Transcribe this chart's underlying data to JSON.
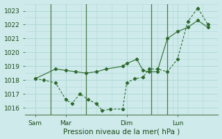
{
  "title": "",
  "xlabel": "Pression niveau de la mer( hPa )",
  "ylabel": "",
  "background_color": "#ceeaea",
  "grid_color": "#b0d8d8",
  "line_color": "#2d6b2d",
  "vline_color": "#4a7a4a",
  "xlim": [
    0,
    9.5
  ],
  "ylim": [
    1015.5,
    1023.5
  ],
  "yticks": [
    1016,
    1017,
    1018,
    1019,
    1020,
    1021,
    1022,
    1023
  ],
  "xtick_positions": [
    0.5,
    2.0,
    5.0,
    7.5
  ],
  "xtick_labels": [
    "Sam",
    "Mar",
    "Dim",
    "Lun"
  ],
  "vlines": [
    1.25,
    3.0,
    6.2,
    7.0
  ],
  "line1_x": [
    0.5,
    0.9,
    1.5,
    2.0,
    2.3,
    2.7,
    3.1,
    3.5,
    3.8,
    4.2,
    4.8,
    5.0,
    5.4,
    5.8,
    6.1,
    6.5,
    7.0,
    7.5,
    8.0,
    8.5,
    9.0
  ],
  "line1_y": [
    1018.1,
    1018.0,
    1017.8,
    1016.6,
    1016.3,
    1017.0,
    1016.6,
    1016.3,
    1015.8,
    1015.9,
    1015.9,
    1017.8,
    1018.1,
    1018.2,
    1018.8,
    1018.8,
    1018.6,
    1019.5,
    1022.2,
    1023.2,
    1022.0
  ],
  "line2_x": [
    0.5,
    1.5,
    2.0,
    2.5,
    3.0,
    3.5,
    4.0,
    4.8,
    5.0,
    5.5,
    5.8,
    6.1,
    6.5,
    7.0,
    7.5,
    8.0,
    8.5,
    9.0
  ],
  "line2_y": [
    1018.1,
    1018.8,
    1018.7,
    1018.6,
    1018.5,
    1018.6,
    1018.8,
    1019.0,
    1019.2,
    1019.5,
    1018.7,
    1018.6,
    1018.6,
    1021.0,
    1021.5,
    1021.8,
    1022.3,
    1021.8
  ],
  "fontsize_ticks": 6.5,
  "fontsize_xlabel": 7.5
}
